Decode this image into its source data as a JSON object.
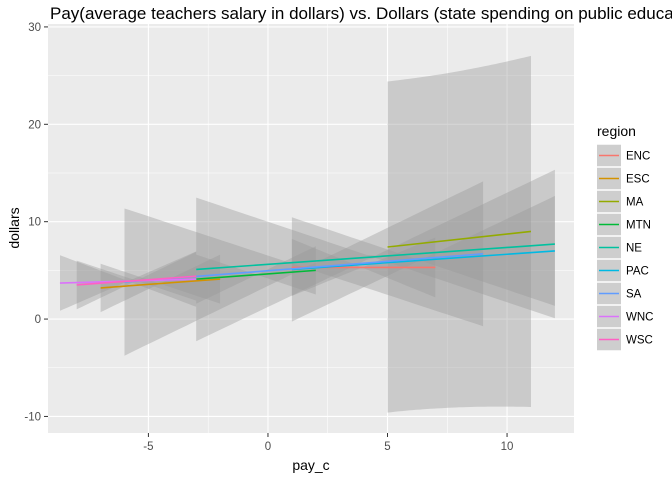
{
  "chart_data": {
    "type": "line",
    "title": "Pay(average teachers salary in dollars) vs. Dollars (state spending on public education per student in thousands)",
    "xlabel": "pay_c",
    "ylabel": "dollars",
    "xlim": [
      -9.2,
      12.8
    ],
    "ylim": [
      -11.7,
      30.3
    ],
    "x_ticks": [
      -5,
      0,
      5,
      10
    ],
    "y_ticks": [
      -10,
      0,
      10,
      20,
      30
    ],
    "x_tick_labels": [
      "-5",
      "0",
      "5",
      "10"
    ],
    "y_tick_labels": [
      "-10",
      "0",
      "10",
      "20",
      "30"
    ],
    "grid": true,
    "confidence_bands": true,
    "legend": {
      "title": "region",
      "position": "right"
    },
    "series": [
      {
        "name": "ENC",
        "color": "#F8766D",
        "x": [
          1,
          7
        ],
        "y": [
          5.3,
          5.3
        ],
        "band_at_ends": [
          [
            4.4,
            6.2
          ],
          [
            4.0,
            6.6
          ]
        ]
      },
      {
        "name": "ESC",
        "color": "#D39200",
        "x": [
          -7,
          -2
        ],
        "y": [
          3.2,
          4.1
        ],
        "band_at_ends": [
          [
            2.9,
            3.5
          ],
          [
            3.6,
            4.6
          ]
        ]
      },
      {
        "name": "MA",
        "color": "#93AA00",
        "x": [
          5,
          11
        ],
        "y": [
          7.4,
          9.0
        ],
        "band_at_ends": [
          [
            -9.7,
            24.3
          ],
          [
            -10.2,
            28.2
          ]
        ]
      },
      {
        "name": "MTN",
        "color": "#00BA38",
        "x": [
          -3,
          2
        ],
        "y": [
          4.1,
          5.0
        ],
        "band_at_ends": [
          [
            3.4,
            4.8
          ],
          [
            4.5,
            5.5
          ]
        ]
      },
      {
        "name": "NE",
        "color": "#00C19F",
        "x": [
          -3,
          12
        ],
        "y": [
          5.1,
          7.7
        ],
        "band_at_ends": [
          [
            4.6,
            5.6
          ],
          [
            5.7,
            9.7
          ]
        ]
      },
      {
        "name": "PAC",
        "color": "#00B9E3",
        "x": [
          1,
          12
        ],
        "y": [
          5.1,
          7.0
        ],
        "band_at_ends": [
          [
            3.2,
            7.0
          ],
          [
            4.4,
            9.6
          ]
        ]
      },
      {
        "name": "SA",
        "color": "#619CFF",
        "x": [
          -6,
          9
        ],
        "y": [
          3.8,
          6.7
        ],
        "band_at_ends": [
          [
            2.2,
            5.4
          ],
          [
            5.8,
            7.6
          ]
        ]
      },
      {
        "name": "WNC",
        "color": "#DB72FB",
        "x": [
          -8.7,
          -3
        ],
        "y": [
          3.7,
          4.1
        ],
        "band_at_ends": [
          [
            3.4,
            4.0
          ],
          [
            3.9,
            4.3
          ]
        ]
      },
      {
        "name": "WSC",
        "color": "#FF61C3",
        "x": [
          -8,
          -3
        ],
        "y": [
          3.5,
          4.4
        ],
        "band_at_ends": [
          [
            3.2,
            3.8
          ],
          [
            4.1,
            4.7
          ]
        ]
      }
    ],
    "colors": {
      "panel": "#EBEBEB",
      "grid": "#FFFFFF",
      "band": "#999999",
      "legend_key": "#F2F2F2"
    }
  }
}
